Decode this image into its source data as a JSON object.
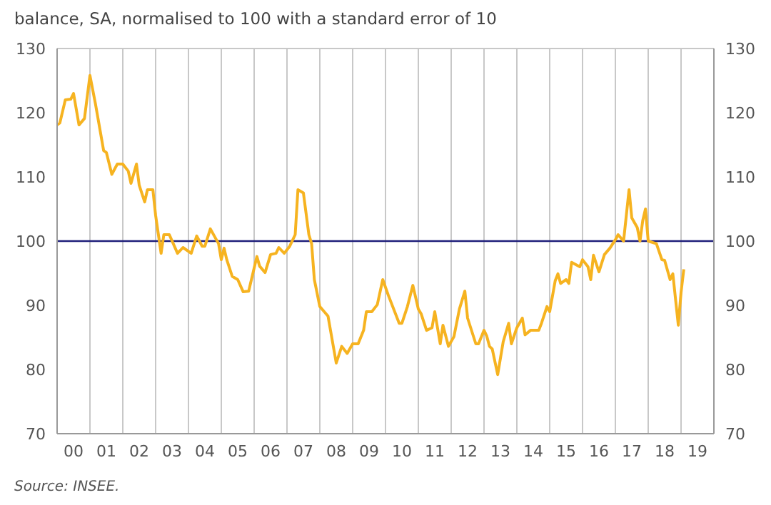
{
  "chart_data": {
    "type": "line",
    "title": "balance, SA, normalised to 100 with a standard error of 10",
    "annotations": [
      "Source: INSEE."
    ],
    "xlim": [
      "2000-01",
      "2020-01"
    ],
    "xticks": [
      {
        "value": "2000-01",
        "label": null
      },
      {
        "value": "2000-07",
        "label": "00"
      },
      {
        "value": "2001-01",
        "label": null
      },
      {
        "value": "2001-07",
        "label": "01"
      },
      {
        "value": "2002-01",
        "label": null
      },
      {
        "value": "2002-07",
        "label": "02"
      },
      {
        "value": "2003-01",
        "label": null
      },
      {
        "value": "2003-07",
        "label": "03"
      },
      {
        "value": "2004-01",
        "label": null
      },
      {
        "value": "2004-07",
        "label": "04"
      },
      {
        "value": "2005-01",
        "label": null
      },
      {
        "value": "2005-07",
        "label": "05"
      },
      {
        "value": "2006-01",
        "label": null
      },
      {
        "value": "2006-07",
        "label": "06"
      },
      {
        "value": "2007-01",
        "label": null
      },
      {
        "value": "2007-07",
        "label": "07"
      },
      {
        "value": "2008-01",
        "label": null
      },
      {
        "value": "2008-07",
        "label": "08"
      },
      {
        "value": "2009-01",
        "label": null
      },
      {
        "value": "2009-07",
        "label": "09"
      },
      {
        "value": "2010-01",
        "label": null
      },
      {
        "value": "2010-07",
        "label": "10"
      },
      {
        "value": "2011-01",
        "label": null
      },
      {
        "value": "2011-07",
        "label": "11"
      },
      {
        "value": "2012-01",
        "label": null
      },
      {
        "value": "2012-07",
        "label": "12"
      },
      {
        "value": "2013-01",
        "label": null
      },
      {
        "value": "2013-07",
        "label": "13"
      },
      {
        "value": "2014-01",
        "label": null
      },
      {
        "value": "2014-07",
        "label": "14"
      },
      {
        "value": "2015-01",
        "label": null
      },
      {
        "value": "2015-07",
        "label": "15"
      },
      {
        "value": "2016-01",
        "label": null
      },
      {
        "value": "2016-07",
        "label": "16"
      },
      {
        "value": "2017-01",
        "label": null
      },
      {
        "value": "2017-07",
        "label": "17"
      },
      {
        "value": "2018-01",
        "label": null
      },
      {
        "value": "2018-07",
        "label": "18"
      },
      {
        "value": "2019-01",
        "label": null
      },
      {
        "value": "2019-07",
        "label": "19"
      },
      {
        "value": "2020-01",
        "label": null
      }
    ],
    "ylim": [
      70,
      130
    ],
    "yticks": [
      70,
      80,
      90,
      100,
      110,
      120,
      130
    ],
    "y2lim": [
      70,
      130
    ],
    "y2ticks": [
      70,
      80,
      90,
      100,
      110,
      120,
      130
    ],
    "grid": true,
    "ref_lines": [
      {
        "axis": "y",
        "value": 100,
        "color": "#1f1f7a"
      }
    ],
    "series": [
      {
        "color": "#f6b320",
        "x": [
          "2000-01",
          "2000-02",
          "2000-04",
          "2000-06",
          "2000-07",
          "2000-09",
          "2000-11",
          "2001-01",
          "2001-03",
          "2001-06",
          "2001-07",
          "2001-09",
          "2001-11",
          "2002-01",
          "2002-03",
          "2002-04",
          "2002-06",
          "2002-07",
          "2002-09",
          "2002-10",
          "2002-12",
          "2003-01",
          "2003-03",
          "2003-04",
          "2003-06",
          "2003-09",
          "2003-11",
          "2004-02",
          "2004-04",
          "2004-06",
          "2004-07",
          "2004-09",
          "2004-12",
          "2005-01",
          "2005-02",
          "2005-03",
          "2005-05",
          "2005-07",
          "2005-09",
          "2005-11",
          "2006-02",
          "2006-03",
          "2006-05",
          "2006-07",
          "2006-09",
          "2006-10",
          "2006-12",
          "2007-02",
          "2007-04",
          "2007-05",
          "2007-07",
          "2007-09",
          "2007-10",
          "2007-11",
          "2008-01",
          "2008-04",
          "2008-07",
          "2008-09",
          "2008-11",
          "2009-01",
          "2009-03",
          "2009-05",
          "2009-06",
          "2009-08",
          "2009-10",
          "2009-12",
          "2010-02",
          "2010-06",
          "2010-07",
          "2010-09",
          "2010-11",
          "2011-01",
          "2011-02",
          "2011-04",
          "2011-06",
          "2011-07",
          "2011-09",
          "2011-10",
          "2011-12",
          "2012-02",
          "2012-04",
          "2012-06",
          "2012-07",
          "2012-10",
          "2012-11",
          "2013-01",
          "2013-02",
          "2013-03",
          "2013-04",
          "2013-06",
          "2013-08",
          "2013-10",
          "2013-11",
          "2014-01",
          "2014-03",
          "2014-04",
          "2014-06",
          "2014-09",
          "2014-10",
          "2014-12",
          "2015-01",
          "2015-03",
          "2015-04",
          "2015-05",
          "2015-07",
          "2015-08",
          "2015-09",
          "2015-12",
          "2016-01",
          "2016-03",
          "2016-04",
          "2016-05",
          "2016-07",
          "2016-09",
          "2016-11",
          "2017-01",
          "2017-02",
          "2017-04",
          "2017-06",
          "2017-07",
          "2017-09",
          "2017-10",
          "2017-11",
          "2017-12",
          "2018-01",
          "2018-04",
          "2018-06",
          "2018-07",
          "2018-09",
          "2018-10",
          "2018-12",
          "2019-01",
          "2019-02"
        ],
        "values": [
          118.1,
          118.4,
          122,
          122.1,
          123,
          118.1,
          119.1,
          125.8,
          121.4,
          114.1,
          113.8,
          110.4,
          112,
          112,
          110.9,
          109,
          112,
          108.7,
          106.1,
          108,
          108,
          104,
          98.1,
          101,
          101,
          98.1,
          99,
          98.1,
          100.8,
          99.2,
          99.2,
          101.9,
          99.6,
          97.1,
          98.9,
          97.1,
          94.5,
          94,
          92.1,
          92.2,
          97.6,
          96.1,
          95.1,
          97.9,
          98.1,
          99,
          98.1,
          99.2,
          101,
          108,
          107.5,
          101,
          99.6,
          94,
          89.8,
          88.3,
          81,
          83.6,
          82.5,
          84,
          84,
          86.1,
          89,
          89,
          90.1,
          94,
          91.6,
          87.2,
          87.2,
          89.8,
          93.1,
          89.4,
          88.7,
          86.1,
          86.5,
          89,
          84,
          86.9,
          83.6,
          85.1,
          89.4,
          92.2,
          88,
          84,
          84,
          86.1,
          85.2,
          83.6,
          83.2,
          79.2,
          84.3,
          87.2,
          84,
          86.5,
          88,
          85.4,
          86.1,
          86.1,
          87.2,
          89.8,
          89,
          93.8,
          94.9,
          93.4,
          94,
          93.4,
          96.7,
          96,
          97.1,
          96,
          94,
          97.8,
          95.2,
          97.9,
          98.9,
          100.2,
          101,
          100,
          108,
          103.6,
          102.1,
          100,
          103.2,
          105,
          100,
          99.6,
          97.1,
          97,
          94,
          94.9,
          86.9,
          92,
          95.6
        ]
      }
    ]
  }
}
